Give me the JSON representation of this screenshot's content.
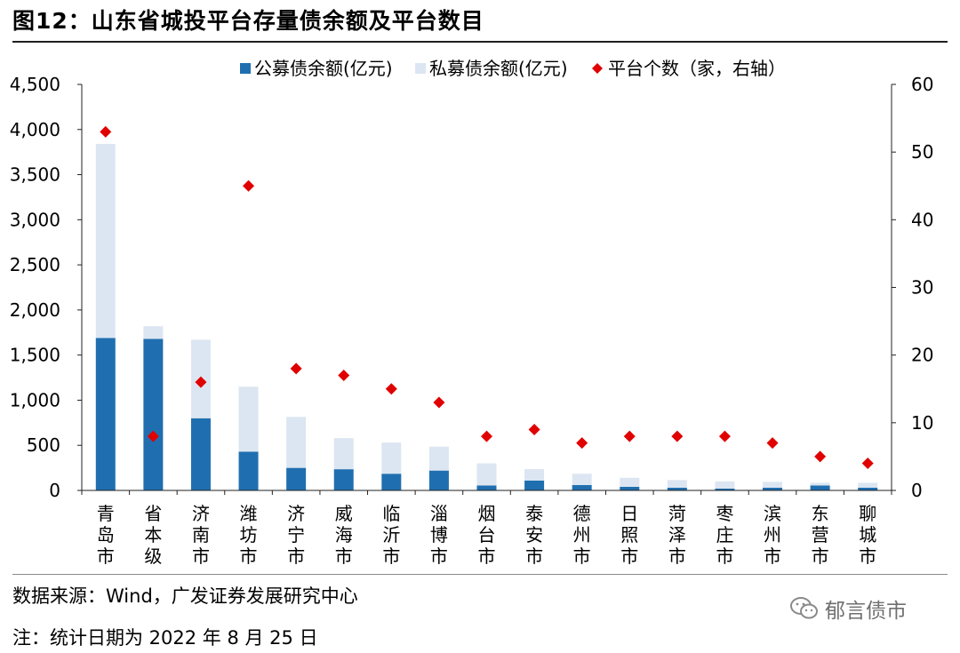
{
  "header": {
    "title": "图12：山东省城投平台存量债余额及平台数目"
  },
  "footer": {
    "source": "数据来源：Wind，广发证券发展研究中心",
    "note": "注：统计日期为 2022 年 8 月 25 日",
    "watermark": "郁言债市"
  },
  "colors": {
    "public": "#1f6fb0",
    "private": "#dce6f2",
    "count": "#e00000"
  },
  "chart_data": {
    "type": "bar",
    "stacked": true,
    "categories": [
      "青岛市",
      "省本级",
      "济南市",
      "潍坊市",
      "济宁市",
      "威海市",
      "临沂市",
      "淄博市",
      "烟台市",
      "泰安市",
      "德州市",
      "日照市",
      "菏泽市",
      "枣庄市",
      "滨州市",
      "东营市",
      "聊城市"
    ],
    "series": [
      {
        "name": "公募债余额(亿元)",
        "type": "bar",
        "axis": "left",
        "values": [
          1690,
          1680,
          800,
          430,
          250,
          235,
          185,
          220,
          55,
          110,
          60,
          40,
          30,
          20,
          30,
          55,
          30
        ]
      },
      {
        "name": "私募债余额(亿元)",
        "type": "bar",
        "axis": "left",
        "values": [
          2150,
          140,
          870,
          720,
          565,
          345,
          345,
          265,
          245,
          125,
          125,
          100,
          85,
          80,
          65,
          30,
          55
        ]
      },
      {
        "name": "平台个数（家，右轴）",
        "type": "scatter",
        "axis": "right",
        "values": [
          53,
          8,
          16,
          45,
          18,
          17,
          15,
          13,
          8,
          9,
          7,
          8,
          8,
          8,
          7,
          5,
          4
        ]
      }
    ],
    "y_left": {
      "min": 0,
      "max": 4500,
      "step": 500,
      "ticks": [
        "0",
        "500",
        "1,000",
        "1,500",
        "2,000",
        "2,500",
        "3,000",
        "3,500",
        "4,000",
        "4,500"
      ]
    },
    "y_right": {
      "min": 0,
      "max": 60,
      "step": 10,
      "ticks": [
        "0",
        "10",
        "20",
        "30",
        "40",
        "50",
        "60"
      ]
    },
    "legend": "top-center",
    "grid": false
  }
}
